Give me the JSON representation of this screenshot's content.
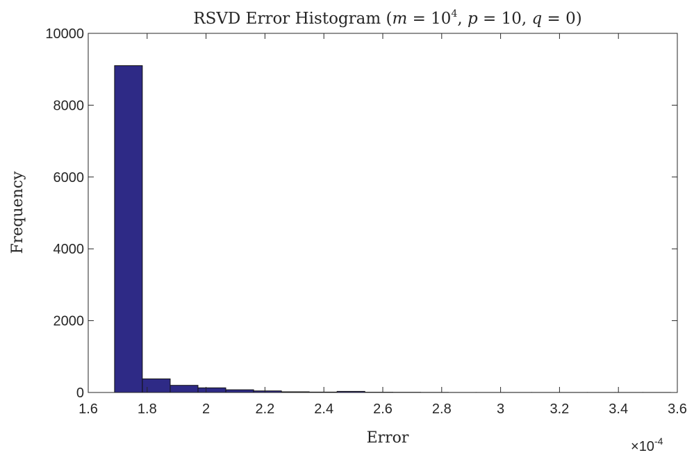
{
  "chart_data": {
    "type": "bar",
    "title_parts": {
      "prefix": "RSVD Error Histogram (",
      "m_var": "m",
      "m_eq": " = 10",
      "m_exp": "4",
      "p_part": ", ",
      "p_var": "p",
      "p_eq": " = 10, ",
      "q_var": "q",
      "q_eq": " = 0)"
    },
    "xlabel": "Error",
    "ylabel": "Frequency",
    "x_multiplier": {
      "times": "×",
      "base": "10",
      "exp": "-4"
    },
    "xlim": [
      1.6,
      3.6
    ],
    "ylim": [
      0,
      10000
    ],
    "xticks": [
      "1.6",
      "1.8",
      "2",
      "2.2",
      "2.4",
      "2.6",
      "2.8",
      "3",
      "3.2",
      "3.4",
      "3.6"
    ],
    "yticks": [
      "0",
      "2000",
      "4000",
      "6000",
      "8000",
      "10000"
    ],
    "bin_start": 1.6895,
    "bin_width": 0.0944,
    "counts": [
      9100,
      380,
      200,
      130,
      75,
      45,
      20,
      12,
      30,
      8,
      5,
      3,
      2,
      2,
      1,
      1,
      1,
      1,
      1,
      1
    ],
    "bar_color": "#2e2a86",
    "bar_edge_color": "#111111"
  }
}
